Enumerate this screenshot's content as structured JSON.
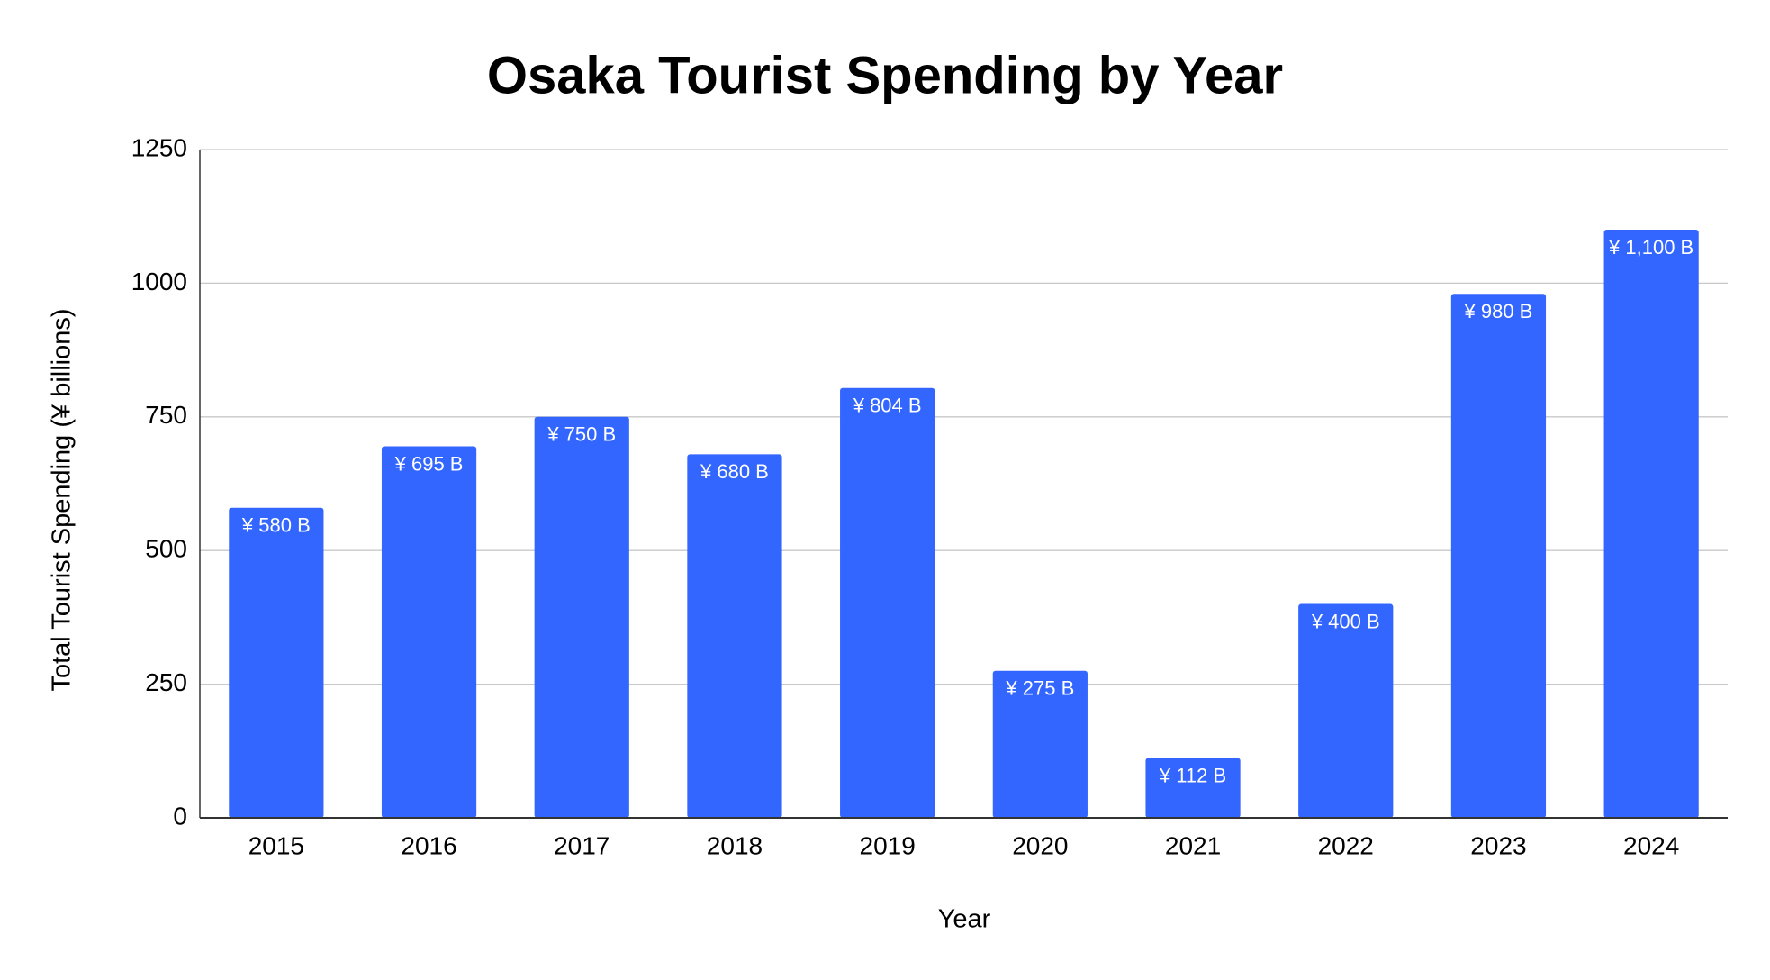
{
  "chart_data": {
    "type": "bar",
    "title": "Osaka Tourist Spending by Year",
    "x_label": "Year",
    "y_label": "Total Tourist Spending (¥ billions)",
    "categories": [
      "2015",
      "2016",
      "2017",
      "2018",
      "2019",
      "2020",
      "2021",
      "2022",
      "2023",
      "2024"
    ],
    "values": [
      580,
      695,
      750,
      680,
      804,
      275,
      112,
      400,
      980,
      1100
    ],
    "value_labels": [
      "¥ 580 B",
      "¥ 695 B",
      "¥ 750 B",
      "¥ 680 B",
      "¥ 804 B",
      "¥ 275 B",
      "¥ 112 B",
      "¥ 400 B",
      "¥ 980 B",
      "¥ 1,100 B"
    ],
    "color": "#3366ff",
    "ylim": [
      0,
      1250
    ],
    "yticks": [
      0,
      250,
      500,
      750,
      1000,
      1250
    ],
    "grid": true
  }
}
